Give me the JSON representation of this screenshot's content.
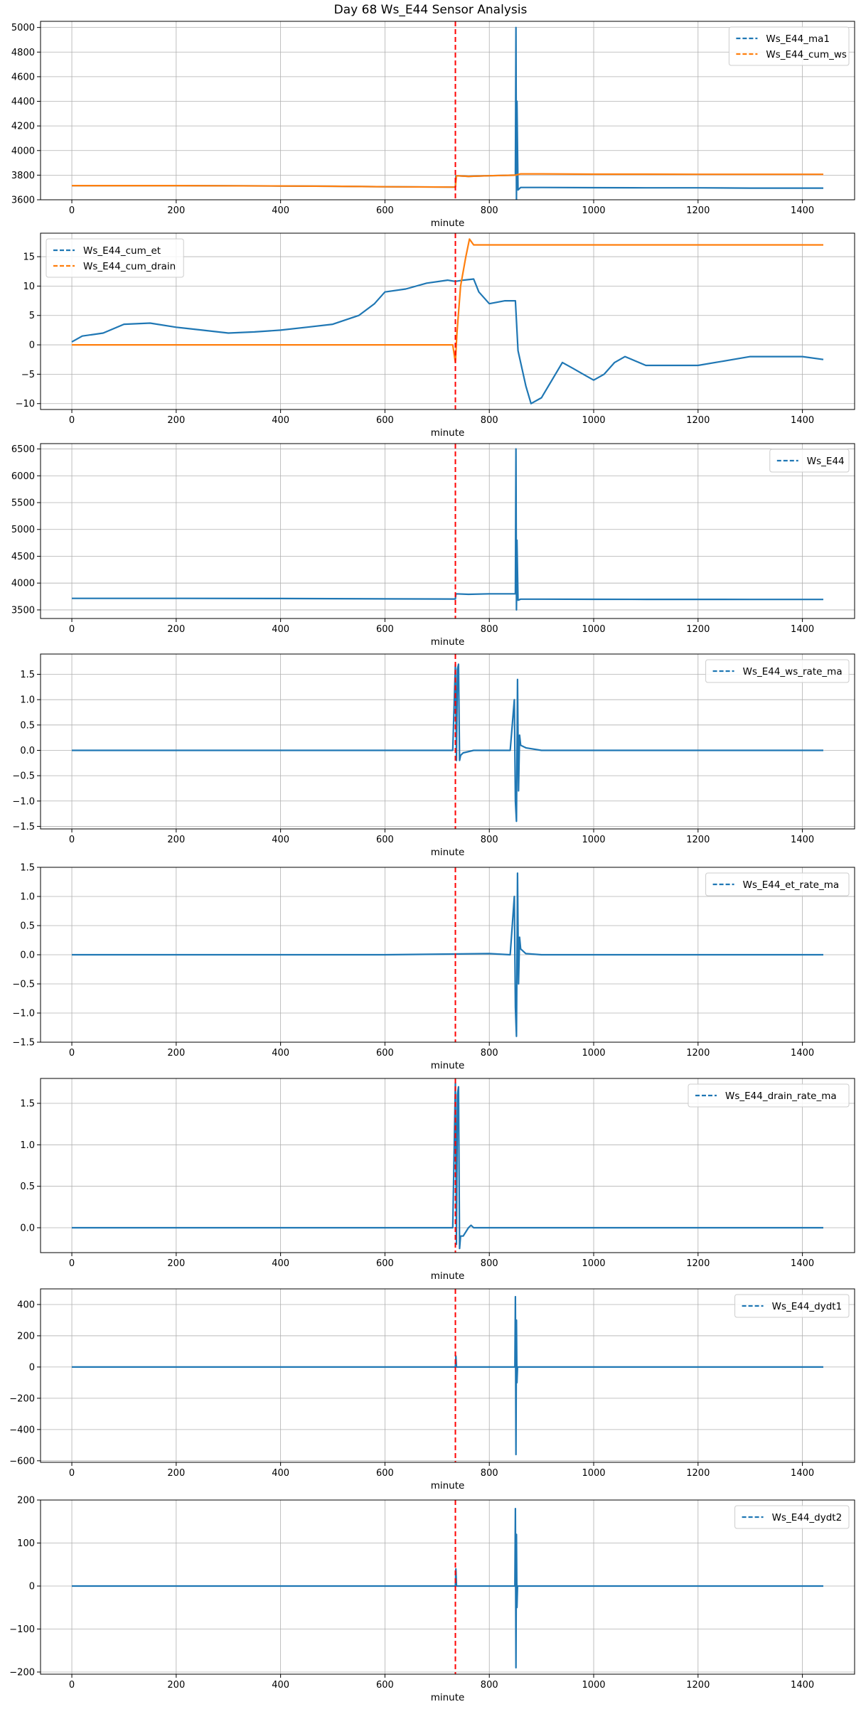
{
  "figure": {
    "title": "Day 68 Ws_E44 Sensor Analysis",
    "event_minute": 735,
    "colors": {
      "blue": "#1f77b4",
      "orange": "#ff7f0e",
      "event": "#ff0000",
      "grid": "#b0b0b0"
    }
  },
  "chart_data": [
    {
      "type": "line",
      "xlabel": "minute",
      "xlim": [
        -60,
        1500
      ],
      "xticks": [
        0,
        200,
        400,
        600,
        800,
        1000,
        1200,
        1400
      ],
      "ylim": [
        3600,
        5050
      ],
      "yticks": [
        3600,
        3800,
        4000,
        4200,
        4400,
        4600,
        4800,
        5000
      ],
      "grid": true,
      "legend_position": "upper right",
      "series": [
        {
          "name": "Ws_E44_ma1",
          "color": "#1f77b4",
          "x": [
            0,
            200,
            400,
            500,
            600,
            735,
            736,
            760,
            800,
            850,
            851,
            852,
            853,
            855,
            860,
            900,
            1000,
            1100,
            1200,
            1300,
            1440
          ],
          "y": [
            3715,
            3715,
            3712,
            3710,
            3706,
            3703,
            3795,
            3790,
            3795,
            3800,
            5000,
            3600,
            4400,
            3680,
            3700,
            3700,
            3698,
            3697,
            3697,
            3695,
            3695
          ]
        },
        {
          "name": "Ws_E44_cum_ws",
          "color": "#ff7f0e",
          "x": [
            0,
            200,
            400,
            500,
            600,
            735,
            737,
            760,
            800,
            850,
            860,
            900,
            1000,
            1100,
            1200,
            1440
          ],
          "y": [
            3715,
            3715,
            3712,
            3710,
            3706,
            3703,
            3795,
            3790,
            3795,
            3800,
            3810,
            3810,
            3808,
            3808,
            3807,
            3807
          ]
        }
      ]
    },
    {
      "type": "line",
      "xlabel": "minute",
      "xlim": [
        -60,
        1500
      ],
      "xticks": [
        0,
        200,
        400,
        600,
        800,
        1000,
        1200,
        1400
      ],
      "ylim": [
        -11,
        19
      ],
      "yticks": [
        -10,
        -5,
        0,
        5,
        10,
        15
      ],
      "grid": true,
      "legend_position": "upper left",
      "series": [
        {
          "name": "Ws_E44_cum_et",
          "color": "#1f77b4",
          "x": [
            0,
            20,
            60,
            100,
            150,
            200,
            250,
            300,
            350,
            400,
            450,
            500,
            550,
            580,
            600,
            640,
            680,
            720,
            735,
            750,
            770,
            780,
            800,
            830,
            850,
            855,
            870,
            880,
            900,
            920,
            940,
            960,
            980,
            1000,
            1020,
            1040,
            1060,
            1100,
            1200,
            1300,
            1400,
            1440
          ],
          "y": [
            0.5,
            1.5,
            2,
            3.5,
            3.7,
            3,
            2.5,
            2,
            2.2,
            2.5,
            3,
            3.5,
            5,
            7,
            9,
            9.5,
            10.5,
            11,
            10.8,
            11,
            11.2,
            9,
            7,
            7.5,
            7.5,
            -1,
            -7,
            -10,
            -9,
            -6,
            -3,
            -4,
            -5,
            -6,
            -5,
            -3,
            -2,
            -3.5,
            -3.5,
            -2,
            -2,
            -2.5
          ]
        },
        {
          "name": "Ws_E44_cum_drain",
          "color": "#ff7f0e",
          "x": [
            0,
            730,
            735,
            738,
            745,
            755,
            762,
            770,
            780,
            1440
          ],
          "y": [
            0,
            0,
            -3,
            2,
            10,
            15,
            18,
            17,
            17,
            17
          ]
        }
      ]
    },
    {
      "type": "line",
      "xlabel": "minute",
      "xlim": [
        -60,
        1500
      ],
      "xticks": [
        0,
        200,
        400,
        600,
        800,
        1000,
        1200,
        1400
      ],
      "ylim": [
        3340,
        6600
      ],
      "yticks": [
        3500,
        4000,
        4500,
        5000,
        5500,
        6000,
        6500
      ],
      "grid": true,
      "legend_position": "upper right",
      "series": [
        {
          "name": "Ws_E44",
          "color": "#1f77b4",
          "x": [
            0,
            200,
            400,
            500,
            600,
            735,
            736,
            760,
            800,
            850,
            851,
            852,
            853,
            855,
            860,
            900,
            1000,
            1100,
            1200,
            1300,
            1440
          ],
          "y": [
            3715,
            3715,
            3712,
            3710,
            3706,
            3703,
            3800,
            3790,
            3800,
            3800,
            6500,
            3500,
            4800,
            3680,
            3700,
            3700,
            3698,
            3697,
            3697,
            3695,
            3695
          ]
        }
      ]
    },
    {
      "type": "line",
      "xlabel": "minute",
      "xlim": [
        -60,
        1500
      ],
      "xticks": [
        0,
        200,
        400,
        600,
        800,
        1000,
        1200,
        1400
      ],
      "ylim": [
        -1.55,
        1.9
      ],
      "yticks": [
        -1.5,
        -1.0,
        -0.5,
        0.0,
        0.5,
        1.0,
        1.5
      ],
      "grid": true,
      "legend_position": "upper right",
      "series": [
        {
          "name": "Ws_E44_ws_rate_ma",
          "color": "#1f77b4",
          "x": [
            0,
            200,
            400,
            600,
            730,
            735,
            737,
            739,
            741,
            743,
            745,
            750,
            770,
            800,
            840,
            848,
            850,
            852,
            854,
            856,
            858,
            860,
            870,
            900,
            1000,
            1200,
            1440
          ],
          "y": [
            0,
            0,
            0,
            0,
            0,
            1.7,
            -0.2,
            1.6,
            1.7,
            -0.2,
            -0.1,
            -0.05,
            0,
            0,
            0,
            1.0,
            -1.0,
            -1.4,
            1.4,
            -0.8,
            0.3,
            0.1,
            0.05,
            0,
            0,
            0,
            0
          ]
        }
      ]
    },
    {
      "type": "line",
      "xlabel": "minute",
      "xlim": [
        -60,
        1500
      ],
      "xticks": [
        0,
        200,
        400,
        600,
        800,
        1000,
        1200,
        1400
      ],
      "ylim": [
        -1.5,
        1.5
      ],
      "yticks": [
        -1.5,
        -1.0,
        -0.5,
        0.0,
        0.5,
        1.0,
        1.5
      ],
      "grid": true,
      "legend_position": "upper right",
      "series": [
        {
          "name": "Ws_E44_et_rate_ma",
          "color": "#1f77b4",
          "x": [
            0,
            200,
            400,
            600,
            800,
            840,
            848,
            850,
            852,
            854,
            856,
            858,
            860,
            870,
            900,
            1000,
            1200,
            1440
          ],
          "y": [
            0,
            0,
            0,
            0,
            0.02,
            0,
            1.0,
            -0.9,
            -1.4,
            1.4,
            -0.5,
            0.3,
            0.1,
            0.02,
            0,
            0,
            0,
            0
          ]
        }
      ]
    },
    {
      "type": "line",
      "xlabel": "minute",
      "xlim": [
        -60,
        1500
      ],
      "xticks": [
        0,
        200,
        400,
        600,
        800,
        1000,
        1200,
        1400
      ],
      "ylim": [
        -0.3,
        1.8
      ],
      "yticks": [
        0.0,
        0.5,
        1.0,
        1.5
      ],
      "grid": true,
      "legend_position": "upper right",
      "series": [
        {
          "name": "Ws_E44_drain_rate_ma",
          "color": "#1f77b4",
          "x": [
            0,
            730,
            735,
            737,
            739,
            741,
            743,
            745,
            750,
            760,
            765,
            770,
            780,
            1440
          ],
          "y": [
            0,
            0,
            1.75,
            -0.2,
            1.6,
            1.7,
            -0.25,
            -0.1,
            -0.1,
            0,
            0.03,
            0,
            0,
            0
          ]
        }
      ]
    },
    {
      "type": "line",
      "xlabel": "minute",
      "xlim": [
        -60,
        1500
      ],
      "xticks": [
        0,
        200,
        400,
        600,
        800,
        1000,
        1200,
        1400
      ],
      "ylim": [
        -610,
        500
      ],
      "yticks": [
        -600,
        -400,
        -200,
        0,
        200,
        400
      ],
      "grid": true,
      "legend_position": "upper right",
      "series": [
        {
          "name": "Ws_E44_dydt1",
          "color": "#1f77b4",
          "x": [
            0,
            735,
            736,
            737,
            849,
            850,
            851,
            852,
            853,
            854,
            1440
          ],
          "y": [
            0,
            0,
            70,
            0,
            0,
            450,
            -560,
            300,
            -100,
            0,
            0
          ]
        }
      ]
    },
    {
      "type": "line",
      "xlabel": "minute",
      "xlim": [
        -60,
        1500
      ],
      "xticks": [
        0,
        200,
        400,
        600,
        800,
        1000,
        1200,
        1400
      ],
      "ylim": [
        -205,
        200
      ],
      "yticks": [
        -200,
        -100,
        0,
        100,
        200
      ],
      "grid": true,
      "legend_position": "upper right",
      "series": [
        {
          "name": "Ws_E44_dydt2",
          "color": "#1f77b4",
          "x": [
            0,
            735,
            736,
            737,
            849,
            850,
            851,
            852,
            853,
            854,
            1440
          ],
          "y": [
            0,
            0,
            40,
            0,
            0,
            180,
            -190,
            120,
            -50,
            0,
            0
          ]
        }
      ]
    }
  ]
}
